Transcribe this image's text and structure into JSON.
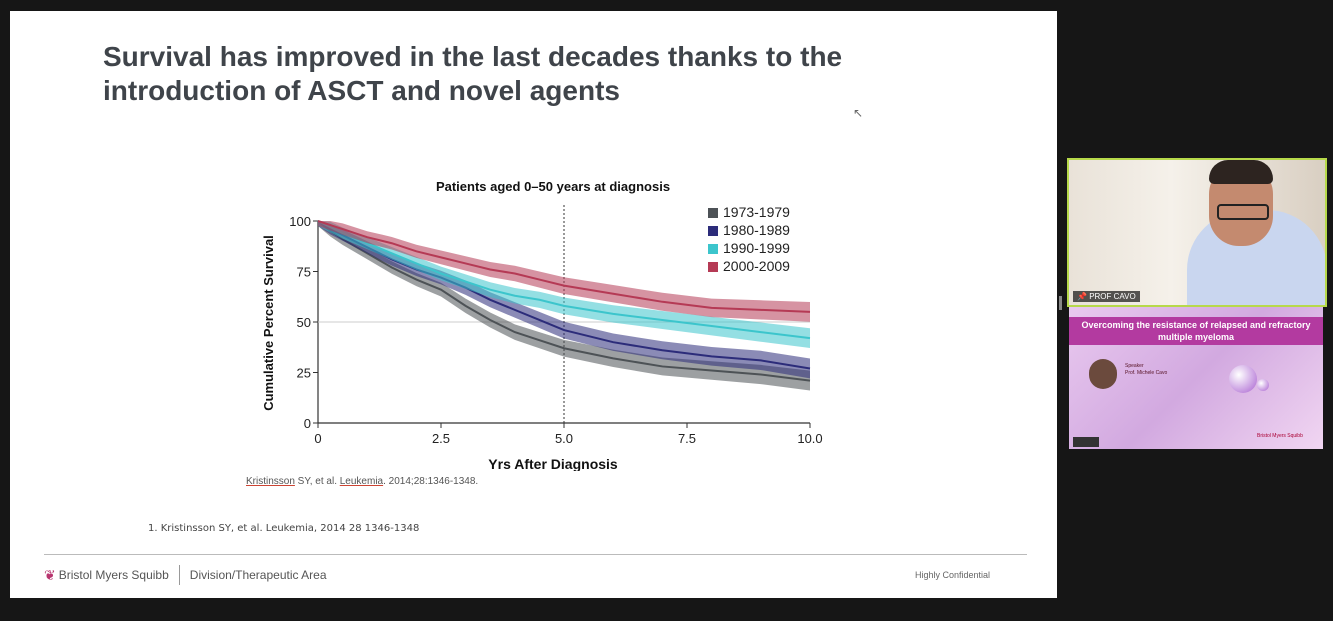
{
  "slide": {
    "title": "Survival has improved in the last decades thanks to the introduction of ASCT and novel agents",
    "citation_author": "Kristinsson",
    "citation_mid": " SY, et al. ",
    "citation_journal": "Leukemia",
    "citation_end": ". 2014;28:1346-1348.",
    "footnote": "1. Kristinsson SY, et al. Leukemia, 2014 28 1346-1348",
    "brand": "Bristol Myers Squibb",
    "division": "Division/Therapeutic Area",
    "confidentiality": "Highly Confidential"
  },
  "chart_data": {
    "type": "line",
    "title": "Patients aged 0–50 years at diagnosis",
    "xlabel": "Yrs After Diagnosis",
    "ylabel": "Cumulative Percent Survival",
    "xlim": [
      0,
      10
    ],
    "ylim": [
      0,
      100
    ],
    "x_ticks": [
      "0",
      "2.5",
      "5.0",
      "7.5",
      "10.0"
    ],
    "y_ticks": [
      "0",
      "25",
      "50",
      "75",
      "100"
    ],
    "reference_line_y": 50,
    "reference_line_x": 5,
    "legend_position": "top-right",
    "x": [
      0,
      0.25,
      0.5,
      1,
      1.5,
      2,
      2.5,
      3,
      3.5,
      4,
      4.5,
      5,
      6,
      7,
      8,
      9,
      10
    ],
    "series": [
      {
        "name": "1973-1979",
        "color": "#4d5256",
        "values": [
          100,
          95,
          91,
          84,
          77,
          71,
          66,
          58,
          51,
          45,
          41,
          37,
          32,
          28,
          26,
          24,
          21
        ]
      },
      {
        "name": "1980-1989",
        "color": "#2c2c7a",
        "values": [
          100,
          96,
          93,
          87,
          81,
          76,
          72,
          67,
          61,
          56,
          51,
          46,
          40,
          36,
          33,
          31,
          27
        ]
      },
      {
        "name": "1990-1999",
        "color": "#3cc5cc",
        "values": [
          100,
          97,
          94,
          89,
          84,
          79,
          74,
          70,
          66,
          63,
          61,
          58,
          54,
          51,
          48,
          45,
          42
        ]
      },
      {
        "name": "2000-2009",
        "color": "#b53a55",
        "values": [
          100,
          98,
          96,
          92,
          89,
          85,
          82,
          79,
          76,
          74,
          71,
          68,
          64,
          60,
          57,
          56,
          55
        ]
      }
    ]
  },
  "camera": {
    "label": "PROF CAVO"
  },
  "promo": {
    "title": "Overcoming the resistance of relapsed and refractory multiple myeloma",
    "speaker_label": "Speaker",
    "speaker_name": "Prof. Michele Cavo",
    "sponsor": "Bristol Myers Squibb"
  }
}
